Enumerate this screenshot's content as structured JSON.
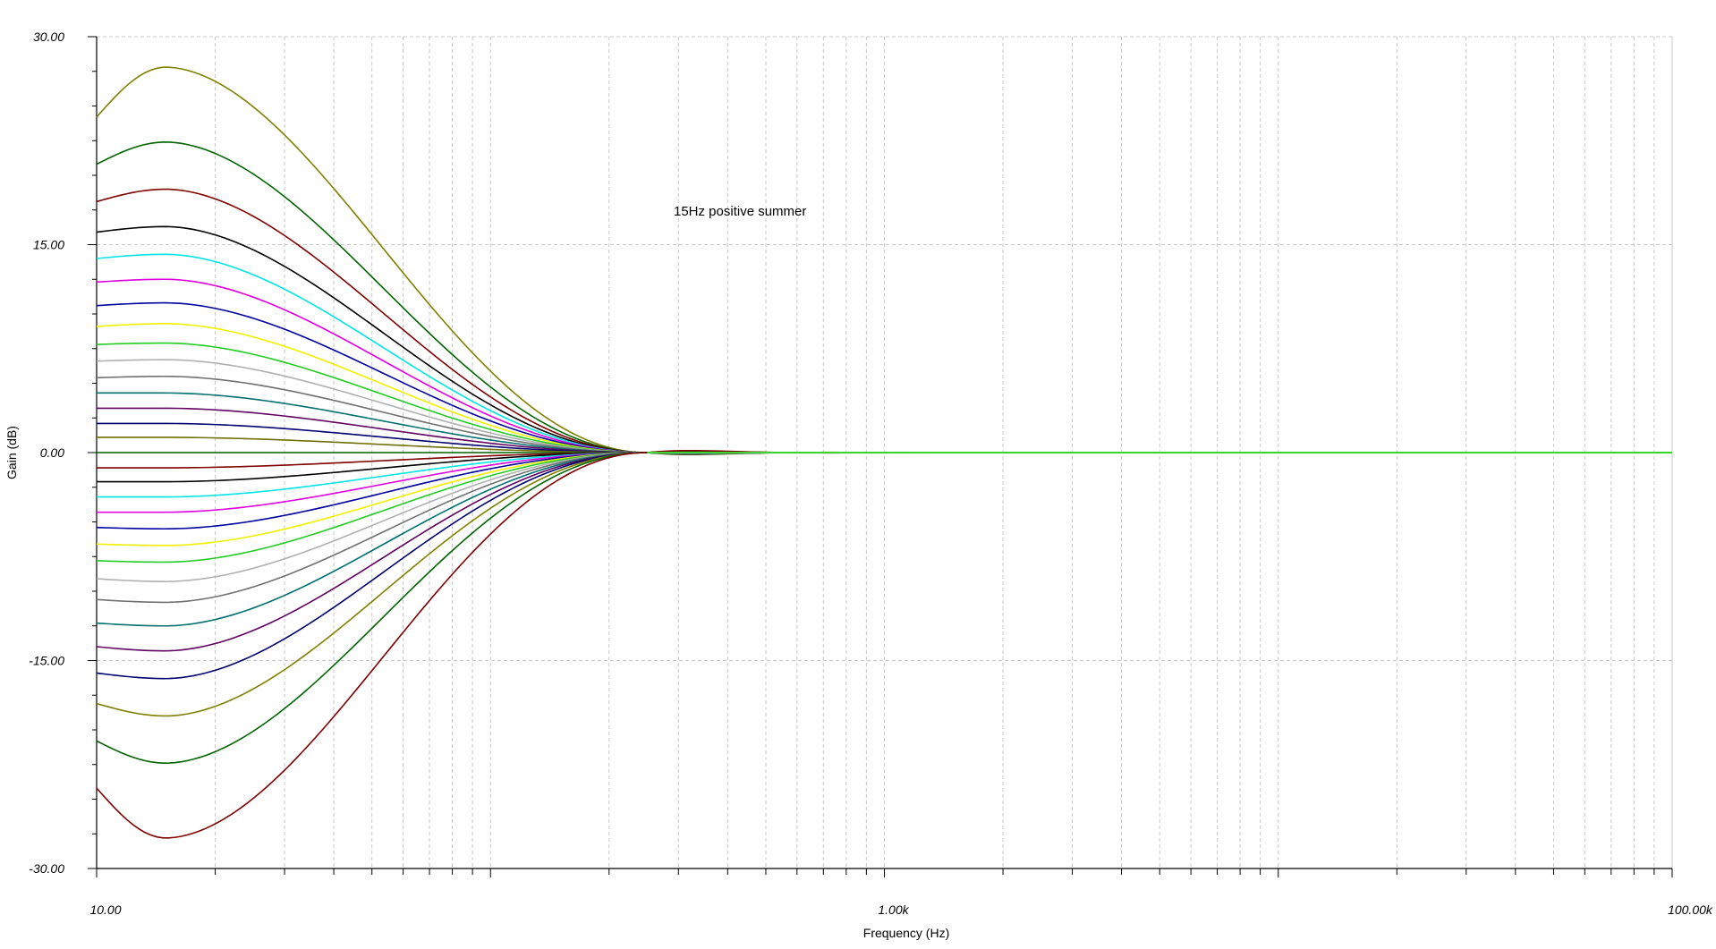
{
  "chart_data": {
    "type": "line",
    "annotation": "15Hz positive summer",
    "xlabel": "Frequency (Hz)",
    "ylabel": "Gain (dB)",
    "xscale": "log",
    "xlim": [
      10,
      100000
    ],
    "ylim": [
      -30,
      30
    ],
    "x_tick_labels": [
      {
        "value": 10,
        "label": "10.00"
      },
      {
        "value": 1000,
        "label": "1.00k"
      },
      {
        "value": 100000,
        "label": "100.00k"
      }
    ],
    "y_tick_labels": [
      {
        "value": 30,
        "label": "30.00"
      },
      {
        "value": 15,
        "label": "15.00"
      },
      {
        "value": 0,
        "label": "0.00"
      },
      {
        "value": -15,
        "label": "-15.00"
      },
      {
        "value": -30,
        "label": "-30.00"
      }
    ],
    "grid": true,
    "curve_shape": {
      "peak_frequency_hz": 15,
      "convergence_frequency_hz": 250
    },
    "series": [
      {
        "peak_db": 27.8,
        "start_db": 24.2,
        "color": "#808000"
      },
      {
        "peak_db": 22.4,
        "start_db": 20.8,
        "color": "#006400"
      },
      {
        "peak_db": 19.0,
        "start_db": 18.1,
        "color": "#800000"
      },
      {
        "peak_db": 16.3,
        "start_db": 15.9,
        "color": "#000000"
      },
      {
        "peak_db": 14.3,
        "start_db": 14.0,
        "color": "#00e5e5"
      },
      {
        "peak_db": 12.5,
        "start_db": 12.3,
        "color": "#e000e0"
      },
      {
        "peak_db": 10.8,
        "start_db": 10.6,
        "color": "#0000a0"
      },
      {
        "peak_db": 9.3,
        "start_db": 9.1,
        "color": "#f0f000"
      },
      {
        "peak_db": 7.9,
        "start_db": 7.8,
        "color": "#22cc22"
      },
      {
        "peak_db": 6.7,
        "start_db": 6.6,
        "color": "#b0b0b0"
      },
      {
        "peak_db": 5.5,
        "start_db": 5.4,
        "color": "#707070"
      },
      {
        "peak_db": 4.3,
        "start_db": 4.3,
        "color": "#007070"
      },
      {
        "peak_db": 3.2,
        "start_db": 3.2,
        "color": "#600060"
      },
      {
        "peak_db": 2.1,
        "start_db": 2.1,
        "color": "#000070"
      },
      {
        "peak_db": 1.1,
        "start_db": 1.1,
        "color": "#707000"
      },
      {
        "peak_db": 0.0,
        "start_db": 0.0,
        "color": "#006400"
      },
      {
        "peak_db": -1.1,
        "start_db": -1.1,
        "color": "#800000"
      },
      {
        "peak_db": -2.1,
        "start_db": -2.1,
        "color": "#000000"
      },
      {
        "peak_db": -3.2,
        "start_db": -3.2,
        "color": "#00e5e5"
      },
      {
        "peak_db": -4.3,
        "start_db": -4.3,
        "color": "#e000e0"
      },
      {
        "peak_db": -5.5,
        "start_db": -5.4,
        "color": "#0000a0"
      },
      {
        "peak_db": -6.7,
        "start_db": -6.6,
        "color": "#f0f000"
      },
      {
        "peak_db": -7.9,
        "start_db": -7.8,
        "color": "#22cc22"
      },
      {
        "peak_db": -9.3,
        "start_db": -9.1,
        "color": "#b0b0b0"
      },
      {
        "peak_db": -10.8,
        "start_db": -10.6,
        "color": "#707070"
      },
      {
        "peak_db": -12.5,
        "start_db": -12.3,
        "color": "#007070"
      },
      {
        "peak_db": -14.3,
        "start_db": -14.0,
        "color": "#600060"
      },
      {
        "peak_db": -16.3,
        "start_db": -15.9,
        "color": "#000070"
      },
      {
        "peak_db": -19.0,
        "start_db": -18.1,
        "color": "#808000"
      },
      {
        "peak_db": -22.4,
        "start_db": -20.8,
        "color": "#006400"
      },
      {
        "peak_db": -27.8,
        "start_db": -24.2,
        "color": "#800000"
      }
    ],
    "flat_series_color": "#33ee33",
    "grid_color": "#c8c8c8"
  }
}
